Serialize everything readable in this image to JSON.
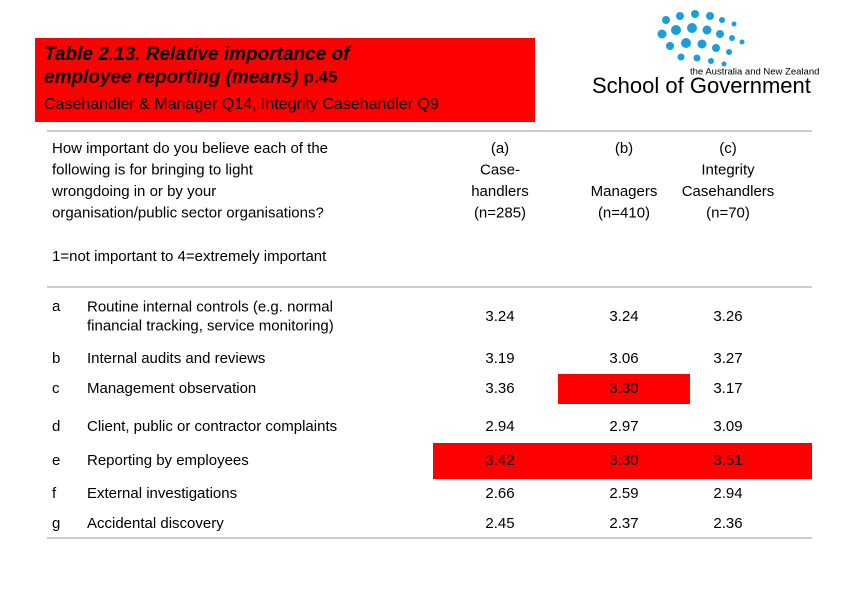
{
  "header": {
    "title_lines": [
      "Table 2.13. Relative importance of",
      "employee reporting (means)"
    ],
    "page_ref": "p.45",
    "subtitle": "Casehandler & Manager Q14, Integrity Casehandler Q9",
    "title_box_color": "#ff0000"
  },
  "logo": {
    "tagline": "the Australia and New Zealand",
    "name": "School of Government"
  },
  "table": {
    "question": [
      "How important do you believe each of the",
      "following is for bringing to light",
      "wrongdoing in or by your",
      "organisation/public sector organisations?"
    ],
    "columns": [
      [
        "(a)",
        "Case-",
        "handlers",
        "(n=285)"
      ],
      [
        "(b)",
        "Managers",
        "(n=410)"
      ],
      [
        "(c)",
        "Integrity",
        "Casehandlers",
        "(n=70)"
      ]
    ],
    "scale_note": "1=not important to 4=extremely important",
    "highlight_color": "#ff0000",
    "rows": [
      {
        "letter": "a",
        "label": [
          "Routine internal controls (e.g. normal",
          "financial tracking, service monitoring)"
        ],
        "values": [
          "3.24",
          "3.24",
          "3.26"
        ],
        "highlight": [
          false,
          false,
          false
        ]
      },
      {
        "letter": "b",
        "label": [
          "Internal audits and reviews"
        ],
        "values": [
          "3.19",
          "3.06",
          "3.27"
        ],
        "highlight": [
          false,
          false,
          false
        ]
      },
      {
        "letter": "c",
        "label": [
          "Management observation"
        ],
        "values": [
          "3.36",
          "3.30",
          "3.17"
        ],
        "highlight": [
          false,
          true,
          false
        ]
      },
      {
        "letter": "d",
        "label": [
          "Client, public or contractor complaints"
        ],
        "values": [
          "2.94",
          "2.97",
          "3.09"
        ],
        "highlight": [
          false,
          false,
          false
        ]
      },
      {
        "letter": "e",
        "label": [
          "Reporting by employees"
        ],
        "values": [
          "3.42",
          "3.30",
          "3.51"
        ],
        "highlight": [
          true,
          true,
          true
        ]
      },
      {
        "letter": "f",
        "label": [
          "External investigations"
        ],
        "values": [
          "2.66",
          "2.59",
          "2.94"
        ],
        "highlight": [
          false,
          false,
          false
        ]
      },
      {
        "letter": "g",
        "label": [
          "Accidental discovery"
        ],
        "values": [
          "2.45",
          "2.37",
          "2.36"
        ],
        "highlight": [
          false,
          false,
          false
        ]
      }
    ]
  }
}
